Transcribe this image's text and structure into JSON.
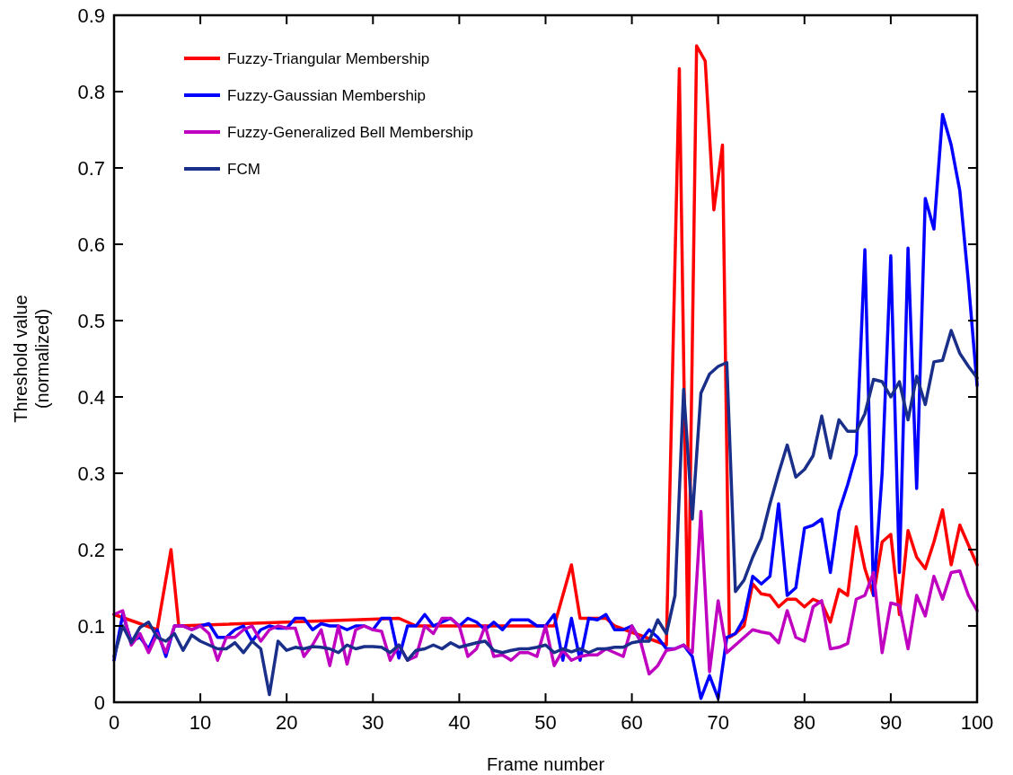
{
  "chart_data": {
    "type": "line",
    "xlabel": "Frame number",
    "ylabel": "Threshold value\n(normalized)",
    "xlim": [
      0,
      100
    ],
    "xticks": [
      0,
      10,
      20,
      30,
      40,
      50,
      60,
      70,
      80,
      90,
      100
    ],
    "ylim": [
      0,
      0.9
    ],
    "yticks": [
      0,
      0.1,
      0.2,
      0.3,
      0.4,
      0.5,
      0.6,
      0.7,
      0.8,
      0.9
    ],
    "x": [
      0,
      1,
      2,
      3,
      4,
      5,
      6,
      7,
      8,
      9,
      10,
      11,
      12,
      13,
      14,
      15,
      16,
      17,
      18,
      19,
      20,
      21,
      22,
      23,
      24,
      25,
      26,
      27,
      28,
      29,
      30,
      31,
      32,
      33,
      34,
      35,
      36,
      37,
      38,
      39,
      40,
      41,
      42,
      43,
      44,
      45,
      46,
      47,
      48,
      49,
      50,
      51,
      52,
      53,
      54,
      55,
      56,
      57,
      58,
      59,
      60,
      61,
      62,
      63,
      64,
      65,
      66,
      67,
      68,
      69,
      70,
      71,
      72,
      73,
      74,
      75,
      76,
      77,
      78,
      79,
      80,
      81,
      82,
      83,
      84,
      85,
      86,
      87,
      88,
      89,
      90,
      91,
      92,
      93,
      94,
      95,
      96,
      97,
      98,
      99,
      100
    ],
    "grid": false,
    "legend": "top left",
    "marker": "none",
    "line_style": "solid",
    "series": [
      {
        "name": "Fuzzy-Triangular Membership",
        "color": "#ff0000",
        "x": [
          0,
          5,
          6.6,
          7.5,
          33,
          34,
          35,
          51,
          53,
          54,
          57,
          58,
          64,
          65.5,
          66.5,
          67.5,
          68.5,
          69.5,
          70.5,
          71.3,
          72,
          73,
          74,
          75,
          76,
          77,
          78,
          79,
          80,
          81,
          82,
          83,
          84,
          85,
          86,
          87,
          88,
          89,
          90,
          91,
          92,
          93,
          94,
          95,
          96,
          97,
          98,
          100
        ],
        "values": [
          0.115,
          0.095,
          0.2,
          0.1,
          0.11,
          0.105,
          0.1,
          0.1,
          0.18,
          0.11,
          0.11,
          0.1,
          0.075,
          0.83,
          0.07,
          0.86,
          0.84,
          0.645,
          0.73,
          0.085,
          0.09,
          0.1,
          0.155,
          0.142,
          0.14,
          0.125,
          0.135,
          0.135,
          0.125,
          0.135,
          0.13,
          0.105,
          0.148,
          0.14,
          0.23,
          0.175,
          0.14,
          0.21,
          0.22,
          0.115,
          0.225,
          0.19,
          0.175,
          0.21,
          0.252,
          0.18,
          0.232,
          0.18
        ]
      },
      {
        "name": "Fuzzy-Gaussian Membership",
        "color": "#0000ff",
        "values": [
          0.055,
          0.115,
          0.08,
          0.085,
          0.07,
          0.095,
          0.06,
          0.1,
          0.1,
          0.095,
          0.1,
          0.103,
          0.085,
          0.085,
          0.095,
          0.1,
          0.08,
          0.095,
          0.1,
          0.097,
          0.097,
          0.11,
          0.11,
          0.095,
          0.103,
          0.1,
          0.1,
          0.095,
          0.1,
          0.1,
          0.095,
          0.11,
          0.11,
          0.058,
          0.1,
          0.1,
          0.115,
          0.1,
          0.105,
          0.11,
          0.1,
          0.11,
          0.105,
          0.095,
          0.105,
          0.095,
          0.108,
          0.108,
          0.108,
          0.1,
          0.1,
          0.115,
          0.055,
          0.11,
          0.055,
          0.11,
          0.108,
          0.115,
          0.095,
          0.095,
          0.1,
          0.08,
          0.095,
          0.085,
          0.07,
          0.07,
          0.075,
          0.06,
          0.005,
          0.035,
          0.005,
          0.085,
          0.09,
          0.11,
          0.165,
          0.155,
          0.165,
          0.26,
          0.14,
          0.15,
          0.228,
          0.232,
          0.24,
          0.17,
          0.25,
          0.285,
          0.325,
          0.593,
          0.14,
          0.3,
          0.585,
          0.17,
          0.595,
          0.28,
          0.66,
          0.62,
          0.77,
          0.73,
          0.67,
          0.55,
          0.415
        ]
      },
      {
        "name": "Fuzzy-Generalized Bell Membership",
        "color": "#c000c0",
        "values": [
          0.115,
          0.12,
          0.075,
          0.09,
          0.065,
          0.09,
          0.065,
          0.1,
          0.1,
          0.095,
          0.1,
          0.09,
          0.055,
          0.085,
          0.085,
          0.095,
          0.1,
          0.08,
          0.095,
          0.1,
          0.097,
          0.097,
          0.06,
          0.075,
          0.095,
          0.048,
          0.1,
          0.05,
          0.095,
          0.1,
          0.095,
          0.093,
          0.055,
          0.075,
          0.055,
          0.06,
          0.1,
          0.09,
          0.11,
          0.11,
          0.1,
          0.06,
          0.07,
          0.1,
          0.06,
          0.062,
          0.055,
          0.065,
          0.065,
          0.06,
          0.1,
          0.048,
          0.068,
          0.055,
          0.06,
          0.062,
          0.062,
          0.07,
          0.065,
          0.06,
          0.1,
          0.08,
          0.037,
          0.048,
          0.068,
          0.07,
          0.075,
          0.065,
          0.25,
          0.04,
          0.133,
          0.065,
          0.075,
          0.085,
          0.095,
          0.092,
          0.09,
          0.078,
          0.12,
          0.085,
          0.08,
          0.125,
          0.133,
          0.07,
          0.072,
          0.077,
          0.135,
          0.14,
          0.17,
          0.065,
          0.13,
          0.127,
          0.07,
          0.14,
          0.113,
          0.165,
          0.135,
          0.17,
          0.172,
          0.14,
          0.12
        ]
      },
      {
        "name": "FCM",
        "color": "#1a2f8a",
        "values": [
          0.06,
          0.1,
          0.078,
          0.098,
          0.105,
          0.085,
          0.08,
          0.09,
          0.068,
          0.088,
          0.08,
          0.075,
          0.07,
          0.07,
          0.078,
          0.065,
          0.08,
          0.07,
          0.01,
          0.08,
          0.068,
          0.072,
          0.07,
          0.073,
          0.072,
          0.07,
          0.065,
          0.075,
          0.07,
          0.073,
          0.073,
          0.072,
          0.065,
          0.075,
          0.055,
          0.068,
          0.07,
          0.075,
          0.07,
          0.078,
          0.072,
          0.075,
          0.078,
          0.08,
          0.068,
          0.065,
          0.068,
          0.07,
          0.07,
          0.072,
          0.075,
          0.065,
          0.07,
          0.066,
          0.07,
          0.065,
          0.07,
          0.07,
          0.072,
          0.072,
          0.078,
          0.08,
          0.08,
          0.108,
          0.09,
          0.14,
          0.41,
          0.24,
          0.405,
          0.43,
          0.44,
          0.445,
          0.145,
          0.16,
          0.19,
          0.215,
          0.26,
          0.3,
          0.337,
          0.295,
          0.305,
          0.323,
          0.375,
          0.32,
          0.37,
          0.355,
          0.355,
          0.378,
          0.423,
          0.42,
          0.4,
          0.42,
          0.37,
          0.427,
          0.39,
          0.446,
          0.448,
          0.487,
          0.457,
          0.44,
          0.425
        ]
      }
    ]
  }
}
